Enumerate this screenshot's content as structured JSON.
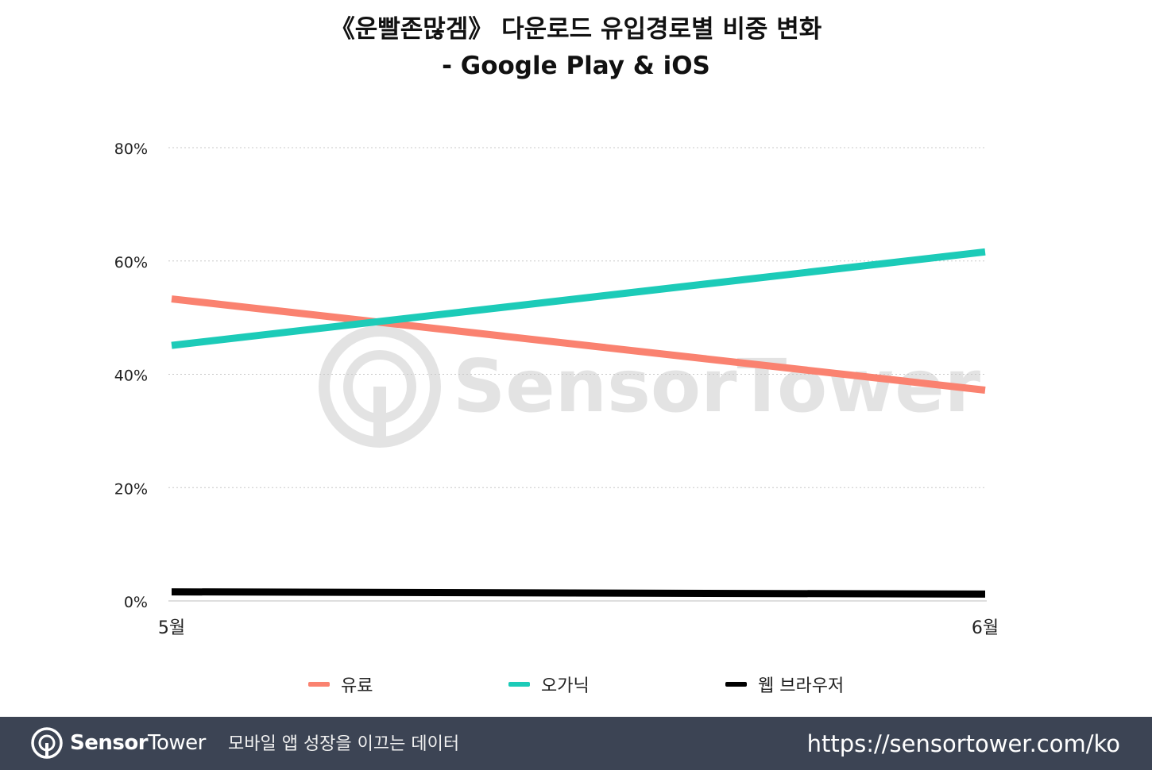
{
  "header": {
    "title_line1": "《운빨존많겜》 다운로드 유입경로별 비중 변화",
    "title_line2": "- Google Play & iOS"
  },
  "watermark": {
    "text": "SensorTower"
  },
  "chart_data": {
    "type": "line",
    "categories": [
      "5월",
      "6월"
    ],
    "ylim": [
      0,
      80
    ],
    "yticks": [
      "0%",
      "20%",
      "40%",
      "60%",
      "80%"
    ],
    "ytick_values": [
      0,
      20,
      40,
      60,
      80
    ],
    "grid": true,
    "legend_position": "bottom",
    "series": [
      {
        "name": "유료",
        "values": [
          53.3,
          37.2
        ],
        "color": "#fa8270"
      },
      {
        "name": "오가닉",
        "values": [
          45.1,
          61.6
        ],
        "color": "#1ccbb8"
      },
      {
        "name": "웹 브라우저",
        "values": [
          1.6,
          1.2
        ],
        "color": "#000000"
      }
    ]
  },
  "footer": {
    "brand_bold": "Sensor",
    "brand_regular": "Tower",
    "tagline": "모바일 앱 성장을 이끄는 데이터",
    "url": "https://sensortower.com/ko",
    "background_color": "#3c4454"
  }
}
